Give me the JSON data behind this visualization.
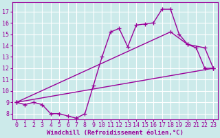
{
  "background_color": "#cceaea",
  "grid_color": "#ffffff",
  "line_color": "#990099",
  "marker": "+",
  "markersize": 4,
  "linewidth": 1.0,
  "xlabel": "Windchill (Refroidissement éolien,°C)",
  "xlabel_fontsize": 6.5,
  "tick_fontsize": 6,
  "xlim": [
    -0.5,
    23.5
  ],
  "ylim": [
    7.5,
    17.8
  ],
  "yticks": [
    8,
    9,
    10,
    11,
    12,
    13,
    14,
    15,
    16,
    17
  ],
  "xticks": [
    0,
    1,
    2,
    3,
    4,
    5,
    6,
    7,
    8,
    9,
    10,
    11,
    12,
    13,
    14,
    15,
    16,
    17,
    18,
    19,
    20,
    21,
    22,
    23
  ],
  "line1_x": [
    0,
    1,
    2,
    3,
    4,
    5,
    6,
    7,
    8,
    9,
    10,
    11,
    12,
    13,
    14,
    15,
    16,
    17,
    18,
    19,
    20,
    21,
    22,
    23
  ],
  "line1_y": [
    9.0,
    8.8,
    9.0,
    8.8,
    8.0,
    8.0,
    7.8,
    7.6,
    8.0,
    10.5,
    13.0,
    15.2,
    15.5,
    13.9,
    15.8,
    15.9,
    16.0,
    17.2,
    17.2,
    15.0,
    14.1,
    13.8,
    12.0,
    12.0
  ],
  "line2_x": [
    0,
    23
  ],
  "line2_y": [
    9.0,
    12.0
  ],
  "line3_x": [
    0,
    18,
    20,
    22,
    23
  ],
  "line3_y": [
    9.0,
    15.2,
    14.1,
    13.8,
    12.0
  ]
}
